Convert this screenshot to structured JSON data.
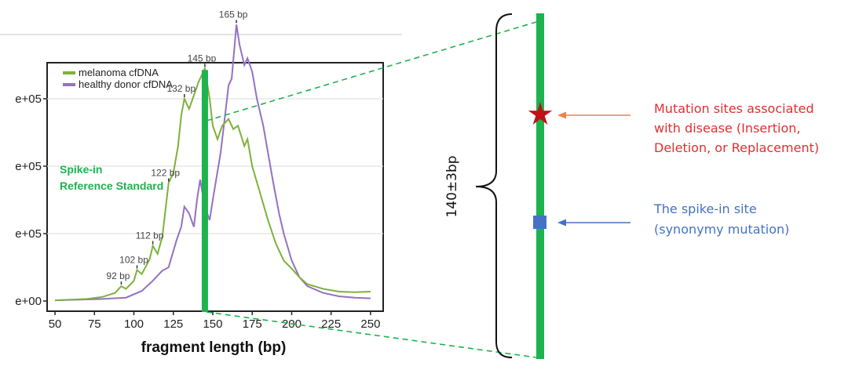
{
  "colors": {
    "melanoma": "#7fb13a",
    "healthy": "#9470c4",
    "green_bar": "#1db34e",
    "red": "#e03030",
    "blue": "#4472c4",
    "star": "#c0101a",
    "square": "#4472c4",
    "orange_arrow": "#e8834a",
    "blue_arrow": "#4472c4"
  },
  "chart_data": {
    "type": "line",
    "xlabel": "fragment length (bp)",
    "xlim": [
      45,
      258
    ],
    "ylim": [
      0,
      4.0
    ],
    "x_ticks": [
      "50",
      "75",
      "100",
      "125",
      "150",
      "175",
      "200",
      "225",
      "250"
    ],
    "y_ticks": [
      "e+05",
      "e+05",
      "e+05",
      "e+00"
    ],
    "grid": true,
    "legend_position": "top-left",
    "series": [
      {
        "name": "melanoma cfDNA",
        "points": [
          [
            50,
            0.01
          ],
          [
            70,
            0.03
          ],
          [
            80,
            0.06
          ],
          [
            88,
            0.12
          ],
          [
            92,
            0.22
          ],
          [
            95,
            0.18
          ],
          [
            100,
            0.3
          ],
          [
            102,
            0.46
          ],
          [
            105,
            0.4
          ],
          [
            110,
            0.62
          ],
          [
            112,
            0.82
          ],
          [
            115,
            0.7
          ],
          [
            118,
            0.95
          ],
          [
            120,
            1.35
          ],
          [
            122,
            1.75
          ],
          [
            125,
            1.9
          ],
          [
            128,
            2.3
          ],
          [
            130,
            2.75
          ],
          [
            132,
            3.0
          ],
          [
            135,
            2.85
          ],
          [
            138,
            3.05
          ],
          [
            141,
            3.25
          ],
          [
            143,
            3.35
          ],
          [
            145,
            3.45
          ],
          [
            148,
            3.0
          ],
          [
            150,
            2.6
          ],
          [
            153,
            2.4
          ],
          [
            156,
            2.6
          ],
          [
            160,
            2.7
          ],
          [
            163,
            2.55
          ],
          [
            166,
            2.6
          ],
          [
            170,
            2.3
          ],
          [
            172,
            2.4
          ],
          [
            175,
            2.0
          ],
          [
            180,
            1.6
          ],
          [
            185,
            1.2
          ],
          [
            190,
            0.85
          ],
          [
            195,
            0.6
          ],
          [
            200,
            0.48
          ],
          [
            205,
            0.35
          ],
          [
            210,
            0.25
          ],
          [
            220,
            0.18
          ],
          [
            230,
            0.14
          ],
          [
            240,
            0.13
          ],
          [
            250,
            0.14
          ]
        ]
      },
      {
        "name": "healthy donor cfDNA",
        "points": [
          [
            50,
            0.01
          ],
          [
            80,
            0.03
          ],
          [
            95,
            0.05
          ],
          [
            105,
            0.15
          ],
          [
            112,
            0.3
          ],
          [
            118,
            0.45
          ],
          [
            122,
            0.5
          ],
          [
            127,
            0.9
          ],
          [
            130,
            1.1
          ],
          [
            132,
            1.4
          ],
          [
            135,
            1.3
          ],
          [
            138,
            1.1
          ],
          [
            140,
            1.5
          ],
          [
            142,
            1.8
          ],
          [
            145,
            1.4
          ],
          [
            148,
            1.2
          ],
          [
            150,
            1.5
          ],
          [
            155,
            2.2
          ],
          [
            158,
            2.8
          ],
          [
            160,
            3.2
          ],
          [
            162,
            3.3
          ],
          [
            165,
            4.1
          ],
          [
            167,
            3.8
          ],
          [
            170,
            3.5
          ],
          [
            172,
            3.6
          ],
          [
            175,
            3.4
          ],
          [
            178,
            3.0
          ],
          [
            182,
            2.6
          ],
          [
            185,
            2.2
          ],
          [
            188,
            1.8
          ],
          [
            192,
            1.3
          ],
          [
            195,
            1.0
          ],
          [
            200,
            0.6
          ],
          [
            205,
            0.35
          ],
          [
            210,
            0.22
          ],
          [
            220,
            0.12
          ],
          [
            230,
            0.07
          ],
          [
            240,
            0.05
          ],
          [
            250,
            0.04
          ]
        ]
      }
    ],
    "annotations": [
      {
        "text": "92 bp",
        "x": 92,
        "y": 0.22
      },
      {
        "text": "102 bp",
        "x": 102,
        "y": 0.46
      },
      {
        "text": "112 bp",
        "x": 112,
        "y": 0.82
      },
      {
        "text": "122 bp",
        "x": 122,
        "y": 1.75
      },
      {
        "text": "132 bp",
        "x": 132,
        "y": 3.0
      },
      {
        "text": "145 bp",
        "x": 145,
        "y": 3.45
      },
      {
        "text": "165 bp",
        "x": 165,
        "y": 4.1
      }
    ],
    "marker_x": 145
  },
  "labels": {
    "spike_in_line1": "Spike-in",
    "spike_in_line2": "Reference Standard",
    "length": "140±3bp",
    "mutation_line1": "Mutation sites associated",
    "mutation_line2": "with disease (Insertion,",
    "mutation_line3": "Deletion, or Replacement)",
    "spike_site_line1": "The spike-in site",
    "spike_site_line2": "(synonymy mutation)"
  }
}
